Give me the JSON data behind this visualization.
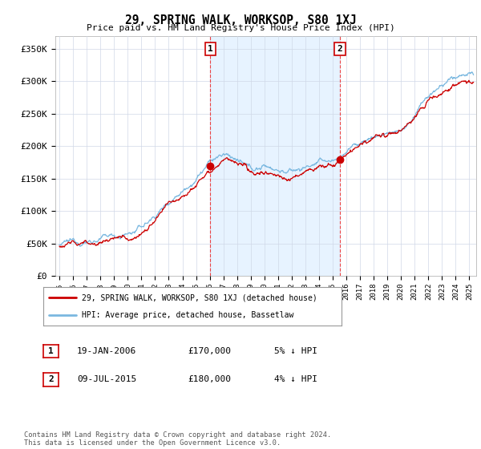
{
  "title": "29, SPRING WALK, WORKSOP, S80 1XJ",
  "subtitle": "Price paid vs. HM Land Registry's House Price Index (HPI)",
  "ylabel_ticks": [
    "£0",
    "£50K",
    "£100K",
    "£150K",
    "£200K",
    "£250K",
    "£300K",
    "£350K"
  ],
  "ytick_values": [
    0,
    50000,
    100000,
    150000,
    200000,
    250000,
    300000,
    350000
  ],
  "ylim": [
    0,
    370000
  ],
  "xlim_start": 1994.7,
  "xlim_end": 2025.5,
  "hpi_color": "#7ab8e0",
  "price_color": "#cc0000",
  "shade_color": "#ddeeff",
  "marker1_x": 2006.05,
  "marker1_y": 170000,
  "marker2_x": 2015.52,
  "marker2_y": 180000,
  "vline1_x": 2006.05,
  "vline2_x": 2015.52,
  "vline_color": "#ee3333",
  "background_color": "#ffffff",
  "grid_color": "#d0d8e8",
  "legend_entry1": "29, SPRING WALK, WORKSOP, S80 1XJ (detached house)",
  "legend_entry2": "HPI: Average price, detached house, Bassetlaw",
  "table_row1": [
    "1",
    "19-JAN-2006",
    "£170,000",
    "5% ↓ HPI"
  ],
  "table_row2": [
    "2",
    "09-JUL-2015",
    "£180,000",
    "4% ↓ HPI"
  ],
  "footnote": "Contains HM Land Registry data © Crown copyright and database right 2024.\nThis data is licensed under the Open Government Licence v3.0."
}
